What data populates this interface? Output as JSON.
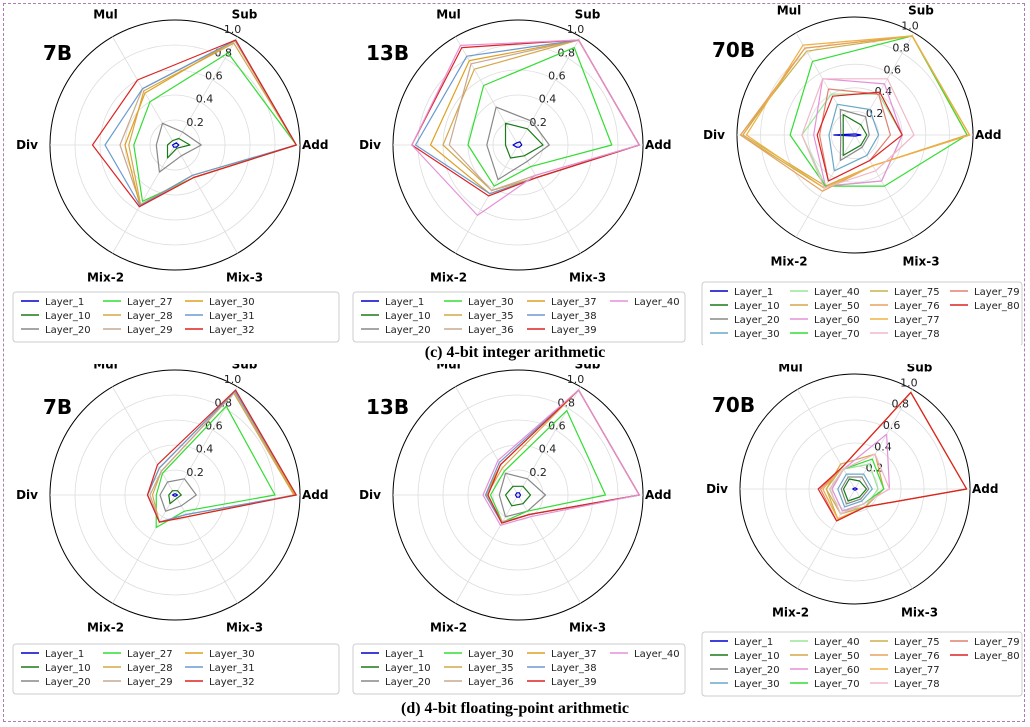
{
  "captions": {
    "top": "(c) 4-bit integer arithmetic",
    "bottom": "(d) 4-bit floating-point arithmetic"
  },
  "chart_data": [
    {
      "type": "radar",
      "title": "7B",
      "axes": [
        "Add",
        "Sub",
        "Mul",
        "Div",
        "Mix-2",
        "Mix-3"
      ],
      "rlim": [
        0,
        1.0
      ],
      "rticks": [
        "0.2",
        "0.4",
        "0.6",
        "0.8",
        "1.0"
      ],
      "legend_cols": 4,
      "series": [
        {
          "name": "Layer_1",
          "color": "#0000cc",
          "values": [
            0.03,
            0.02,
            0.01,
            0.02,
            0.02,
            0.02
          ]
        },
        {
          "name": "Layer_10",
          "color": "#1a7a1a",
          "values": [
            0.12,
            0.06,
            0.04,
            0.06,
            0.12,
            0.03
          ]
        },
        {
          "name": "Layer_20",
          "color": "#888888",
          "values": [
            0.21,
            0.12,
            0.2,
            0.15,
            0.25,
            0.1
          ]
        },
        {
          "name": "Layer_27",
          "color": "#33dd33",
          "values": [
            0.97,
            0.85,
            0.4,
            0.33,
            0.52,
            0.3
          ]
        },
        {
          "name": "Layer_28",
          "color": "#d4a84a",
          "values": [
            0.97,
            0.94,
            0.5,
            0.37,
            0.55,
            0.28
          ]
        },
        {
          "name": "Layer_29",
          "color": "#c8a890",
          "values": [
            0.97,
            0.96,
            0.52,
            0.44,
            0.55,
            0.3
          ]
        },
        {
          "name": "Layer_30",
          "color": "#e0a020",
          "values": [
            0.97,
            0.97,
            0.48,
            0.4,
            0.56,
            0.3
          ]
        },
        {
          "name": "Layer_31",
          "color": "#6a9ad0",
          "values": [
            0.97,
            0.97,
            0.52,
            0.56,
            0.56,
            0.28
          ]
        },
        {
          "name": "Layer_32",
          "color": "#dd2222",
          "values": [
            0.97,
            0.97,
            0.6,
            0.66,
            0.57,
            0.3
          ]
        }
      ]
    },
    {
      "type": "radar",
      "title": "13B",
      "axes": [
        "Add",
        "Sub",
        "Mul",
        "Div",
        "Mix-2",
        "Mix-3"
      ],
      "rlim": [
        0,
        1.0
      ],
      "rticks": [
        "0.2",
        "0.4",
        "0.6",
        "0.8",
        "1.0"
      ],
      "legend_cols": 4,
      "series": [
        {
          "name": "Layer_1",
          "color": "#0000cc",
          "values": [
            0.03,
            0.03,
            0.02,
            0.04,
            0.02,
            0.02
          ]
        },
        {
          "name": "Layer_10",
          "color": "#1a7a1a",
          "values": [
            0.2,
            0.15,
            0.2,
            0.1,
            0.12,
            0.1
          ]
        },
        {
          "name": "Layer_20",
          "color": "#888888",
          "values": [
            0.25,
            0.22,
            0.35,
            0.25,
            0.32,
            0.15
          ]
        },
        {
          "name": "Layer_30",
          "color": "#33dd33",
          "values": [
            0.75,
            0.9,
            0.55,
            0.4,
            0.38,
            0.2
          ]
        },
        {
          "name": "Layer_35",
          "color": "#d4a84a",
          "values": [
            0.97,
            0.97,
            0.7,
            0.6,
            0.42,
            0.3
          ]
        },
        {
          "name": "Layer_36",
          "color": "#c8a890",
          "values": [
            0.97,
            0.97,
            0.75,
            0.55,
            0.42,
            0.28
          ]
        },
        {
          "name": "Layer_37",
          "color": "#e0a020",
          "values": [
            0.97,
            0.97,
            0.78,
            0.7,
            0.45,
            0.3
          ]
        },
        {
          "name": "Layer_38",
          "color": "#6a9ad0",
          "values": [
            0.97,
            0.97,
            0.82,
            0.82,
            0.45,
            0.3
          ]
        },
        {
          "name": "Layer_39",
          "color": "#dd2222",
          "values": [
            0.97,
            0.97,
            0.9,
            0.85,
            0.47,
            0.3
          ]
        },
        {
          "name": "Layer_40",
          "color": "#e690d8",
          "values": [
            0.97,
            0.97,
            0.92,
            0.85,
            0.65,
            0.28
          ]
        }
      ]
    },
    {
      "type": "radar",
      "title": "70B",
      "axes": [
        "Add",
        "Sub",
        "Mul",
        "Div",
        "Mix-2",
        "Mix-3"
      ],
      "rlim": [
        0,
        1.0
      ],
      "rticks": [
        "0.2",
        "0.4",
        "0.6",
        "0.8",
        "1.0"
      ],
      "legend_cols": 4,
      "series": [
        {
          "name": "Layer_1",
          "color": "#0000cc",
          "values": [
            0.05,
            0.01,
            0.01,
            0.18,
            0.01,
            0.01
          ]
        },
        {
          "name": "Layer_10",
          "color": "#1a7a1a",
          "values": [
            0.1,
            0.1,
            0.2,
            0.1,
            0.2,
            0.1
          ]
        },
        {
          "name": "Layer_20",
          "color": "#888888",
          "values": [
            0.12,
            0.18,
            0.25,
            0.12,
            0.25,
            0.12
          ]
        },
        {
          "name": "Layer_30",
          "color": "#6aa8c8",
          "values": [
            0.2,
            0.25,
            0.3,
            0.22,
            0.35,
            0.2
          ]
        },
        {
          "name": "Layer_40",
          "color": "#99e699",
          "values": [
            0.4,
            0.4,
            0.4,
            0.45,
            0.5,
            0.45
          ]
        },
        {
          "name": "Layer_50",
          "color": "#d4a84a",
          "values": [
            0.95,
            0.97,
            0.85,
            0.95,
            0.5,
            0.3
          ]
        },
        {
          "name": "Layer_60",
          "color": "#e690d8",
          "values": [
            0.4,
            0.5,
            0.55,
            0.35,
            0.5,
            0.45
          ]
        },
        {
          "name": "Layer_70",
          "color": "#33dd33",
          "values": [
            0.95,
            0.97,
            0.72,
            0.55,
            0.5,
            0.5
          ]
        },
        {
          "name": "Layer_75",
          "color": "#c8b04a",
          "values": [
            0.97,
            0.97,
            0.82,
            0.97,
            0.52,
            0.3
          ]
        },
        {
          "name": "Layer_76",
          "color": "#e8a060",
          "values": [
            0.97,
            0.97,
            0.85,
            0.97,
            0.55,
            0.3
          ]
        },
        {
          "name": "Layer_77",
          "color": "#f0b040",
          "values": [
            0.97,
            0.97,
            0.88,
            0.92,
            0.52,
            0.3
          ]
        },
        {
          "name": "Layer_78",
          "color": "#f0b8c8",
          "values": [
            0.5,
            0.55,
            0.55,
            0.45,
            0.52,
            0.35
          ]
        },
        {
          "name": "Layer_79",
          "color": "#e08070",
          "values": [
            0.3,
            0.4,
            0.45,
            0.3,
            0.45,
            0.25
          ]
        },
        {
          "name": "Layer_80",
          "color": "#dd2222",
          "values": [
            0.4,
            0.42,
            0.38,
            0.32,
            0.45,
            0.25
          ]
        }
      ]
    },
    {
      "type": "radar",
      "title": "7B",
      "axes": [
        "Add",
        "Sub",
        "Mul",
        "Div",
        "Mix-2",
        "Mix-3"
      ],
      "rlim": [
        0,
        1.0
      ],
      "rticks": [
        "0.2",
        "0.4",
        "0.6",
        "0.8",
        "1.0"
      ],
      "legend_cols": 4,
      "series": [
        {
          "name": "Layer_1",
          "color": "#0000cc",
          "values": [
            0.02,
            0.01,
            0.01,
            0.02,
            0.01,
            0.01
          ]
        },
        {
          "name": "Layer_10",
          "color": "#1a7a1a",
          "values": [
            0.05,
            0.04,
            0.04,
            0.05,
            0.08,
            0.03
          ]
        },
        {
          "name": "Layer_20",
          "color": "#888888",
          "values": [
            0.17,
            0.15,
            0.12,
            0.12,
            0.15,
            0.1
          ]
        },
        {
          "name": "Layer_27",
          "color": "#33dd33",
          "values": [
            0.8,
            0.82,
            0.2,
            0.15,
            0.3,
            0.15
          ]
        },
        {
          "name": "Layer_28",
          "color": "#d4a84a",
          "values": [
            0.95,
            0.94,
            0.22,
            0.18,
            0.25,
            0.2
          ]
        },
        {
          "name": "Layer_29",
          "color": "#c8a890",
          "values": [
            0.96,
            0.95,
            0.22,
            0.2,
            0.25,
            0.18
          ]
        },
        {
          "name": "Layer_30",
          "color": "#e0a020",
          "values": [
            0.96,
            0.96,
            0.25,
            0.22,
            0.25,
            0.2
          ]
        },
        {
          "name": "Layer_31",
          "color": "#6a9ad0",
          "values": [
            0.97,
            0.96,
            0.25,
            0.22,
            0.25,
            0.18
          ]
        },
        {
          "name": "Layer_32",
          "color": "#dd2222",
          "values": [
            0.97,
            0.97,
            0.28,
            0.22,
            0.25,
            0.2
          ]
        }
      ]
    },
    {
      "type": "radar",
      "title": "13B",
      "axes": [
        "Add",
        "Sub",
        "Mul",
        "Div",
        "Mix-2",
        "Mix-3"
      ],
      "rlim": [
        0,
        1.0
      ],
      "rticks": [
        "0.2",
        "0.4",
        "0.6",
        "0.8",
        "1.0"
      ],
      "legend_cols": 4,
      "series": [
        {
          "name": "Layer_1",
          "color": "#0000cc",
          "values": [
            0.02,
            0.02,
            0.02,
            0.02,
            0.02,
            0.02
          ]
        },
        {
          "name": "Layer_10",
          "color": "#1a7a1a",
          "values": [
            0.1,
            0.08,
            0.08,
            0.1,
            0.1,
            0.08
          ]
        },
        {
          "name": "Layer_20",
          "color": "#888888",
          "values": [
            0.22,
            0.15,
            0.2,
            0.15,
            0.2,
            0.15
          ]
        },
        {
          "name": "Layer_30",
          "color": "#33dd33",
          "values": [
            0.7,
            0.78,
            0.22,
            0.22,
            0.25,
            0.15
          ]
        },
        {
          "name": "Layer_35",
          "color": "#d4a84a",
          "values": [
            0.97,
            0.97,
            0.25,
            0.25,
            0.25,
            0.18
          ]
        },
        {
          "name": "Layer_36",
          "color": "#c8a890",
          "values": [
            0.97,
            0.97,
            0.28,
            0.25,
            0.25,
            0.18
          ]
        },
        {
          "name": "Layer_37",
          "color": "#e0a020",
          "values": [
            0.97,
            0.97,
            0.28,
            0.26,
            0.26,
            0.18
          ]
        },
        {
          "name": "Layer_38",
          "color": "#6a9ad0",
          "values": [
            0.97,
            0.97,
            0.3,
            0.26,
            0.26,
            0.18
          ]
        },
        {
          "name": "Layer_39",
          "color": "#dd2222",
          "values": [
            0.97,
            0.97,
            0.28,
            0.24,
            0.26,
            0.18
          ]
        },
        {
          "name": "Layer_40",
          "color": "#e690d8",
          "values": [
            0.97,
            0.97,
            0.32,
            0.28,
            0.28,
            0.2
          ]
        }
      ]
    },
    {
      "type": "radar",
      "title": "70B",
      "axes": [
        "Add",
        "Sub",
        "Mul",
        "Div",
        "Mix-2",
        "Mix-3"
      ],
      "rlim": [
        0,
        1.0
      ],
      "rticks": [
        "0.2",
        "0.4",
        "0.6",
        "0.8",
        "1.0"
      ],
      "legend_cols": 4,
      "series": [
        {
          "name": "Layer_1",
          "color": "#0000cc",
          "values": [
            0.02,
            0.01,
            0.01,
            0.02,
            0.01,
            0.01
          ]
        },
        {
          "name": "Layer_10",
          "color": "#1a7a1a",
          "values": [
            0.1,
            0.08,
            0.1,
            0.1,
            0.12,
            0.08
          ]
        },
        {
          "name": "Layer_20",
          "color": "#888888",
          "values": [
            0.12,
            0.12,
            0.12,
            0.12,
            0.15,
            0.1
          ]
        },
        {
          "name": "Layer_30",
          "color": "#6aa8c8",
          "values": [
            0.15,
            0.15,
            0.15,
            0.15,
            0.18,
            0.12
          ]
        },
        {
          "name": "Layer_40",
          "color": "#99e699",
          "values": [
            0.2,
            0.25,
            0.2,
            0.2,
            0.22,
            0.18
          ]
        },
        {
          "name": "Layer_50",
          "color": "#d4a84a",
          "values": [
            0.25,
            0.35,
            0.25,
            0.25,
            0.25,
            0.18
          ]
        },
        {
          "name": "Layer_60",
          "color": "#e690d8",
          "values": [
            0.3,
            0.55,
            0.2,
            0.2,
            0.22,
            0.15
          ]
        },
        {
          "name": "Layer_70",
          "color": "#33dd33",
          "values": [
            0.25,
            0.3,
            0.2,
            0.22,
            0.25,
            0.15
          ]
        },
        {
          "name": "Layer_75",
          "color": "#c8b04a",
          "values": [
            0.97,
            0.97,
            0.22,
            0.25,
            0.3,
            0.18
          ]
        },
        {
          "name": "Layer_76",
          "color": "#e8a060",
          "values": [
            0.97,
            0.97,
            0.22,
            0.28,
            0.3,
            0.18
          ]
        },
        {
          "name": "Layer_77",
          "color": "#f0b040",
          "values": [
            0.97,
            0.97,
            0.22,
            0.28,
            0.3,
            0.18
          ]
        },
        {
          "name": "Layer_78",
          "color": "#f0b8c8",
          "values": [
            0.3,
            0.35,
            0.2,
            0.22,
            0.25,
            0.15
          ]
        },
        {
          "name": "Layer_79",
          "color": "#e08070",
          "values": [
            0.97,
            0.97,
            0.22,
            0.3,
            0.32,
            0.18
          ]
        },
        {
          "name": "Layer_80",
          "color": "#dd2222",
          "values": [
            0.97,
            0.97,
            0.22,
            0.32,
            0.32,
            0.18
          ]
        }
      ]
    }
  ]
}
